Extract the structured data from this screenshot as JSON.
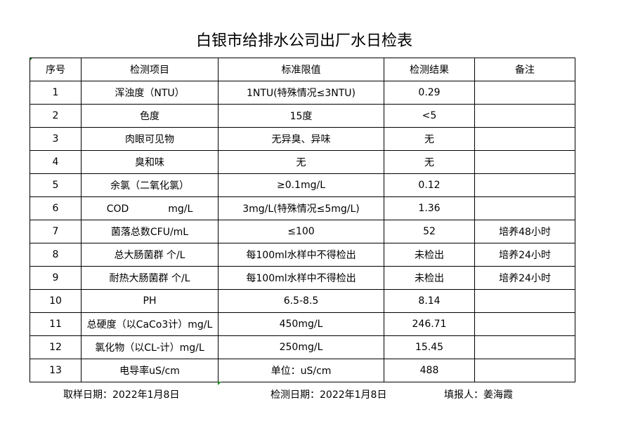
{
  "title": "白银市给排水公司出厂水日检表",
  "headers": [
    "序号",
    "检测项目",
    "标准限值",
    "检测结果",
    "备注"
  ],
  "rows": [
    [
      "1",
      "浑浊度（NTU）",
      "1NTU(特殊情况≤3NTU)",
      "0.29",
      ""
    ],
    [
      "2",
      "色度",
      "15度",
      "<5",
      ""
    ],
    [
      "3",
      "肉眼可见物",
      "无异臭、异味",
      "无",
      ""
    ],
    [
      "4",
      "臭和味",
      "无",
      "无",
      ""
    ],
    [
      "5",
      "余氯（二氧化氯）",
      "≥0.1mg/L",
      "0.12",
      ""
    ],
    [
      "6",
      "COD　　　　mg/L",
      "3mg/L(特殊情况≤5mg/L)",
      "1.36",
      ""
    ],
    [
      "7",
      "菌落总数CFU/mL",
      "≤100",
      "52",
      "培养48小时"
    ],
    [
      "8",
      "总大肠菌群 个/L",
      "每100ml水样中不得检出",
      "未检出",
      "培养24小时"
    ],
    [
      "9",
      "耐热大肠菌群 个/L",
      "每100ml水样中不得检出",
      "未检出",
      "培养24小时"
    ],
    [
      "10",
      "PH",
      "6.5-8.5",
      "8.14",
      ""
    ],
    [
      "11",
      "总硬度（以CaCo3计）mg/L",
      "450mg/L",
      "246.71",
      ""
    ],
    [
      "12",
      "氯化物（以CL-计）mg/L",
      "250mg/L",
      "15.45",
      ""
    ],
    [
      "13",
      "电导率uS/cm",
      "单位：uS/cm",
      "488",
      ""
    ]
  ],
  "footer": {
    "sampling": "取样日期：2022年1月8日",
    "testing": "检测日期：2022年1月8日",
    "filler": "填报人：姜海霞"
  }
}
